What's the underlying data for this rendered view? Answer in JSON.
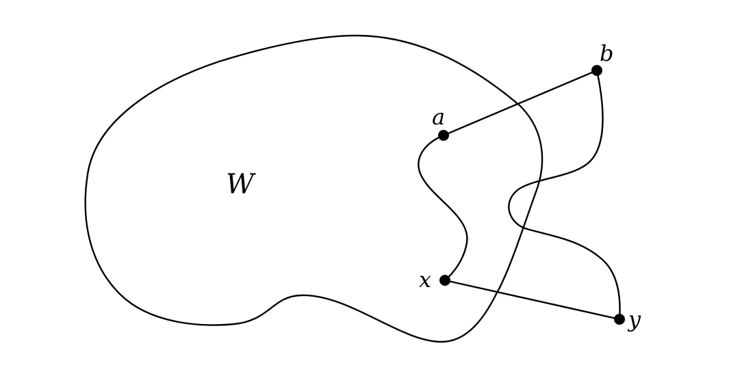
{
  "region": {
    "label": "W"
  },
  "points": {
    "a": {
      "label": "a"
    },
    "b": {
      "label": "b"
    },
    "x": {
      "label": "x"
    },
    "y": {
      "label": "y"
    }
  },
  "colors": {
    "stroke": "#000000",
    "background": "#ffffff"
  }
}
